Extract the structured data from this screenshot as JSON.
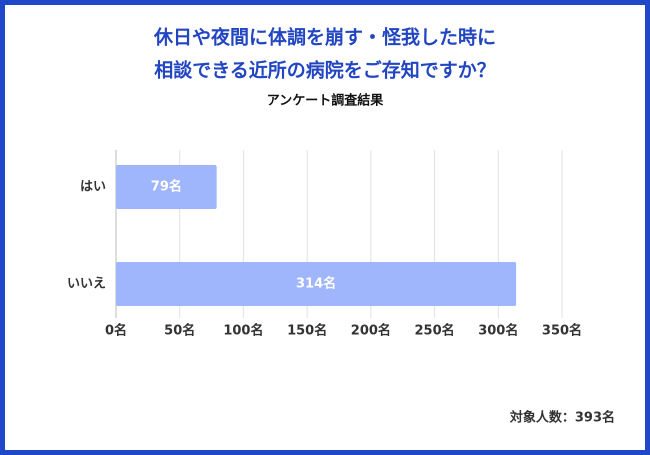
{
  "chart_data": {
    "type": "hbar",
    "title": [
      "休日や夜間に体調を崩す・怪我した時に",
      "相談できる近所の病院をご存知ですか？"
    ],
    "subtitle": "アンケート調査結果",
    "categories": [
      "はい",
      "いいえ"
    ],
    "values": [
      79,
      314
    ],
    "value_labels": [
      "79名",
      "314名"
    ],
    "color": "#9fb5fc",
    "xlim": [
      0,
      350
    ],
    "xticks": [
      {
        "value": 0,
        "label": "0名"
      },
      {
        "value": 50,
        "label": "50名"
      },
      {
        "value": 100,
        "label": "100名"
      },
      {
        "value": 150,
        "label": "150名"
      },
      {
        "value": 200,
        "label": "200名"
      },
      {
        "value": 250,
        "label": "250名"
      },
      {
        "value": 300,
        "label": "300名"
      },
      {
        "value": 350,
        "label": "350名"
      }
    ],
    "grid": true,
    "annotation": "対象人数：393名"
  }
}
